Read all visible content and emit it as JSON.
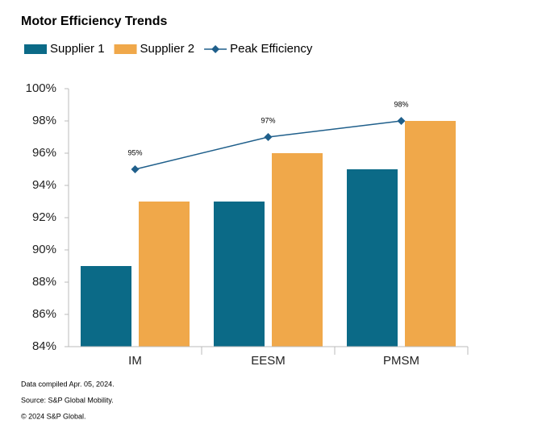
{
  "chart_data": {
    "type": "bar",
    "title": "Motor Efficiency Trends",
    "categories": [
      "IM",
      "EESM",
      "PMSM"
    ],
    "series": [
      {
        "name": "Supplier 1",
        "color": "#0b6a87",
        "values": [
          89,
          93,
          95
        ]
      },
      {
        "name": "Supplier 2",
        "color": "#f0a84a",
        "values": [
          93,
          96,
          98
        ]
      },
      {
        "name": "Peak Efficiency",
        "type": "line",
        "color": "#1f5f8b",
        "values": [
          95,
          97,
          98
        ],
        "value_labels": [
          "95%",
          "97%",
          "98%"
        ]
      }
    ],
    "ylim": [
      84,
      100
    ],
    "yticks": [
      {
        "value": 84,
        "label": "84%"
      },
      {
        "value": 86,
        "label": "86%"
      },
      {
        "value": 88,
        "label": "88%"
      },
      {
        "value": 90,
        "label": "90%"
      },
      {
        "value": 92,
        "label": "92%"
      },
      {
        "value": 94,
        "label": "94%"
      },
      {
        "value": 96,
        "label": "96%"
      },
      {
        "value": 98,
        "label": "98%"
      },
      {
        "value": 100,
        "label": "100%"
      }
    ],
    "grid": false,
    "notes": [
      "Data compiled Apr. 05, 2024.",
      "Source: S&P Global Mobility.",
      "© 2024 S&P Global."
    ]
  }
}
